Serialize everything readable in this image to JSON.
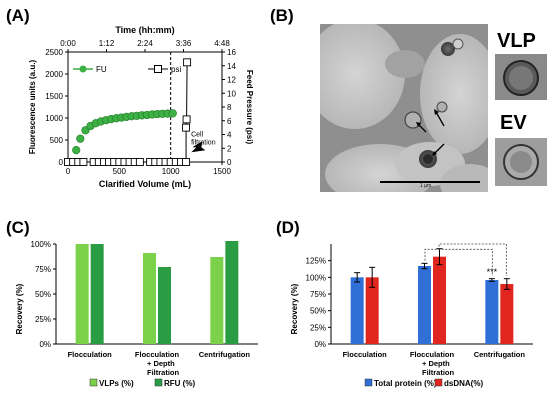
{
  "panels": {
    "a": {
      "label": "(A)"
    },
    "b": {
      "label": "(B)",
      "scale_text": "1 µm",
      "vlp_label": "VLP",
      "ev_label": "EV"
    },
    "c": {
      "label": "(C)"
    },
    "d": {
      "label": "(D)"
    }
  },
  "colors": {
    "fu_green": "#3cb043",
    "vlp_green": "#7cd14a",
    "rfu_green": "#2a9d44",
    "total_protein_blue": "#2f6fd6",
    "dsdna_red": "#e0261e"
  },
  "chart_data": [
    {
      "id": "A",
      "type": "scatter",
      "title": "",
      "xlabel": "Clarified Volume (mL)",
      "xlim": [
        0,
        1500
      ],
      "xticks": [
        0,
        500,
        1000,
        1500
      ],
      "ylabel": "Fluorescence units (a.u.)",
      "ylim": [
        0,
        2500
      ],
      "yticks": [
        0,
        500,
        1000,
        1500,
        2000,
        2500
      ],
      "y2label": "Feed Pressure (psi)",
      "y2lim": [
        0,
        16
      ],
      "y2ticks": [
        0,
        2,
        4,
        6,
        8,
        10,
        12,
        14,
        16
      ],
      "top_axis": {
        "label": "Time (hh:mm)",
        "ticks": [
          "0:00",
          "1:12",
          "2:24",
          "3:36",
          "4:48"
        ]
      },
      "legend": {
        "placement": "top-left"
      },
      "annotation": {
        "text_lines": [
          "Cell",
          "filtration"
        ],
        "x": 1100
      },
      "series": [
        {
          "name": "FU",
          "marker": "circle",
          "color": "#3cb043",
          "axis": "left",
          "connect": false,
          "x": [
            80,
            120,
            170,
            220,
            270,
            320,
            370,
            420,
            470,
            520,
            570,
            620,
            670,
            720,
            770,
            820,
            870,
            920,
            970,
            1020
          ],
          "y": [
            270,
            530,
            720,
            820,
            880,
            920,
            950,
            975,
            995,
            1010,
            1025,
            1040,
            1050,
            1060,
            1070,
            1080,
            1090,
            1095,
            1100,
            1105
          ]
        },
        {
          "name": "psi",
          "marker": "square",
          "color": "#ffffff",
          "axis": "right",
          "connect": true,
          "x": [
            0,
            50,
            100,
            150,
            250,
            300,
            350,
            400,
            450,
            500,
            550,
            600,
            650,
            700,
            800,
            850,
            900,
            950,
            1000,
            1050,
            1100,
            1150,
            1150,
            1155,
            1160
          ],
          "y": [
            0,
            0,
            0,
            0,
            0,
            0,
            0,
            0,
            0,
            0,
            0,
            0,
            0,
            0,
            0,
            0,
            0,
            0,
            0,
            0,
            0,
            0,
            5,
            6.2,
            14.5
          ]
        }
      ]
    },
    {
      "id": "C",
      "type": "bar",
      "title": "",
      "xlabel": "",
      "ylabel": "Recovery (%)",
      "ylim": [
        0,
        100
      ],
      "yticks": [
        "0%",
        "25%",
        "50%",
        "75%",
        "100%"
      ],
      "categories": [
        "Flocculation",
        "Flocculation + Depth Filtration",
        "Centrifugation"
      ],
      "legend": {
        "placement": "bottom"
      },
      "series": [
        {
          "name": "VLPs (%)",
          "color": "#7cd14a",
          "values": [
            100,
            91,
            87
          ]
        },
        {
          "name": "RFU (%)",
          "color": "#2a9d44",
          "values": [
            100,
            77,
            103
          ]
        }
      ]
    },
    {
      "id": "D",
      "type": "bar",
      "title": "",
      "xlabel": "",
      "ylabel": "Recovery (%)",
      "ylim": [
        0,
        150
      ],
      "yticks": [
        "0%",
        "25%",
        "50%",
        "75%",
        "100%",
        "125%"
      ],
      "categories": [
        "Flocculation",
        "Flocculation + Depth Filtration",
        "Centrifugation"
      ],
      "legend": {
        "placement": "bottom"
      },
      "annotation": "***",
      "series": [
        {
          "name": "Total protein (%)",
          "color": "#2f6fd6",
          "values": [
            100,
            117,
            96
          ],
          "errors": [
            7,
            4,
            2
          ]
        },
        {
          "name": "dsDNA(%)",
          "color": "#e0261e",
          "values": [
            100,
            131,
            90
          ],
          "errors": [
            15,
            12,
            8
          ]
        }
      ]
    }
  ]
}
